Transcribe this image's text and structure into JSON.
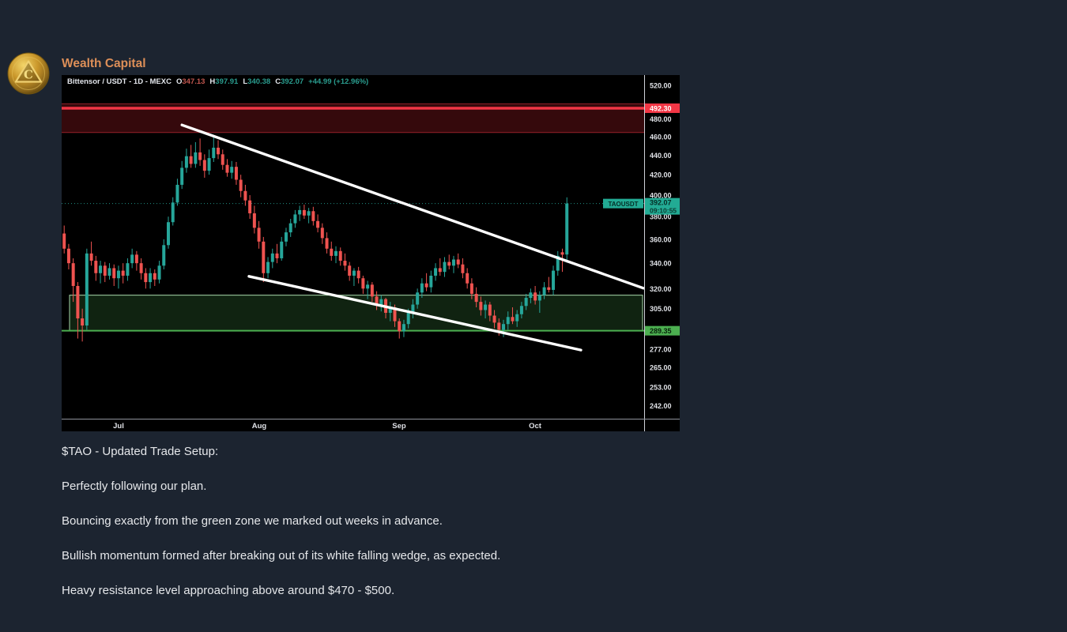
{
  "header": {
    "brand": "Wealth Capital",
    "brand_color": "#dd8f58",
    "logo_letter": "C"
  },
  "chart": {
    "title": "Bittensor / USDT - 1D - MEXC",
    "ohlc": {
      "o_label": "O",
      "o": "347.13",
      "h_label": "H",
      "h": "397.91",
      "l_label": "L",
      "l": "340.38",
      "c_label": "C",
      "c": "392.07",
      "change": "+44.99 (+12.96%)"
    },
    "symbol_tag": "TAOUSDT",
    "current_price": "392.07",
    "countdown": "09:10:55",
    "level_resistance": "492.30",
    "level_support": "289.35",
    "colors": {
      "up": "#26a69a",
      "down": "#ef5350",
      "open_value": "#c0564e",
      "value_teal": "#2a9d8f",
      "resistance": "#f23645",
      "support": "#4caf50",
      "last_label_bg": "#22ab94",
      "trendline": "#ffffff",
      "axis_text": "#e0e2e7",
      "chart_bg": "#000000"
    }
  },
  "chart_data": {
    "type": "candlestick",
    "title": "Bittensor / USDT - 1D - MEXC",
    "symbol": "TAOUSDT",
    "interval": "1D",
    "exchange": "MEXC",
    "scale": "log",
    "last_candle": {
      "open": 347.13,
      "high": 397.91,
      "low": 340.38,
      "close": 392.07,
      "change": 44.99,
      "change_pct": 12.96
    },
    "y_axis_ticks": [
      "520.00",
      "480.00",
      "460.00",
      "440.00",
      "420.00",
      "400.00",
      "380.00",
      "360.00",
      "340.00",
      "320.00",
      "305.00",
      "277.00",
      "265.00",
      "253.00",
      "242.00"
    ],
    "x_axis_labels": [
      "Jul",
      "Aug",
      "Sep",
      "Oct"
    ],
    "levels": {
      "resistance": 492.3,
      "support": 289.35,
      "last": 392.07
    },
    "zones": {
      "resistance": {
        "from": 464.5,
        "to": 497.5,
        "color": "red"
      },
      "support": {
        "from": 289.35,
        "to": 315,
        "color": "green"
      }
    },
    "trendlines": [
      {
        "name": "wedge-upper",
        "from": [
          26,
          473
        ],
        "to": [
          127.9,
          320.3
        ]
      },
      {
        "name": "wedge-lower",
        "from": [
          40.8,
          329.5
        ],
        "to": [
          114.1,
          276.3
        ]
      }
    ],
    "candles": [
      [
        365,
        372,
        348,
        352
      ],
      [
        352,
        356,
        335,
        340
      ],
      [
        340,
        344,
        310,
        322
      ],
      [
        322,
        325,
        284,
        298
      ],
      [
        298,
        305,
        282,
        293
      ],
      [
        293,
        352,
        290,
        348
      ],
      [
        348,
        358,
        338,
        342
      ],
      [
        342,
        346,
        326,
        332
      ],
      [
        332,
        342,
        324,
        338
      ],
      [
        338,
        341,
        325,
        330
      ],
      [
        330,
        340,
        327,
        336
      ],
      [
        336,
        339,
        322,
        328
      ],
      [
        328,
        338,
        320,
        334
      ],
      [
        334,
        340,
        324,
        330
      ],
      [
        330,
        344,
        326,
        340
      ],
      [
        340,
        352,
        336,
        347
      ],
      [
        347,
        350,
        334,
        340
      ],
      [
        340,
        344,
        327,
        332
      ],
      [
        332,
        336,
        320,
        325
      ],
      [
        325,
        336,
        320,
        332
      ],
      [
        332,
        335,
        322,
        327
      ],
      [
        327,
        342,
        324,
        338
      ],
      [
        338,
        360,
        335,
        355
      ],
      [
        355,
        380,
        352,
        375
      ],
      [
        375,
        398,
        372,
        393
      ],
      [
        393,
        416,
        390,
        410
      ],
      [
        410,
        434,
        406,
        427
      ],
      [
        427,
        447,
        422,
        439
      ],
      [
        439,
        451,
        427,
        431
      ],
      [
        431,
        454,
        427,
        443
      ],
      [
        443,
        458,
        429,
        435
      ],
      [
        435,
        441,
        417,
        424
      ],
      [
        424,
        446,
        420,
        437
      ],
      [
        437,
        462,
        433,
        448
      ],
      [
        448,
        456,
        436,
        441
      ],
      [
        441,
        446,
        425,
        430
      ],
      [
        430,
        436,
        418,
        422
      ],
      [
        422,
        434,
        416,
        428
      ],
      [
        428,
        433,
        410,
        415
      ],
      [
        415,
        420,
        398,
        404
      ],
      [
        404,
        410,
        390,
        395
      ],
      [
        395,
        400,
        378,
        383
      ],
      [
        383,
        390,
        365,
        370
      ],
      [
        370,
        376,
        352,
        358
      ],
      [
        358,
        362,
        325,
        332
      ],
      [
        332,
        345,
        328,
        341
      ],
      [
        341,
        352,
        336,
        348
      ],
      [
        348,
        356,
        340,
        344
      ],
      [
        344,
        362,
        342,
        358
      ],
      [
        358,
        370,
        354,
        366
      ],
      [
        366,
        378,
        362,
        374
      ],
      [
        374,
        386,
        370,
        382
      ],
      [
        382,
        390,
        376,
        386
      ],
      [
        386,
        391,
        378,
        381
      ],
      [
        381,
        388,
        374,
        385
      ],
      [
        385,
        389,
        372,
        376
      ],
      [
        376,
        382,
        366,
        370
      ],
      [
        370,
        374,
        356,
        361
      ],
      [
        361,
        366,
        348,
        352
      ],
      [
        352,
        358,
        342,
        346
      ],
      [
        346,
        354,
        340,
        350
      ],
      [
        350,
        353,
        338,
        342
      ],
      [
        342,
        348,
        334,
        338
      ],
      [
        338,
        341,
        326,
        330
      ],
      [
        330,
        336,
        322,
        334
      ],
      [
        334,
        337,
        324,
        328
      ],
      [
        328,
        330,
        316,
        320
      ],
      [
        320,
        326,
        312,
        323
      ],
      [
        323,
        325,
        310,
        314
      ],
      [
        314,
        318,
        304,
        308
      ],
      [
        308,
        315,
        303,
        312
      ],
      [
        312,
        313,
        298,
        302
      ],
      [
        302,
        310,
        296,
        306
      ],
      [
        306,
        308,
        292,
        296
      ],
      [
        296,
        298,
        284,
        289
      ],
      [
        289,
        297,
        285,
        294
      ],
      [
        294,
        305,
        291,
        302
      ],
      [
        302,
        312,
        298,
        308
      ],
      [
        308,
        320,
        305,
        317
      ],
      [
        317,
        328,
        313,
        324
      ],
      [
        324,
        332,
        318,
        321
      ],
      [
        321,
        334,
        317,
        330
      ],
      [
        330,
        340,
        326,
        336
      ],
      [
        336,
        344,
        330,
        333
      ],
      [
        333,
        345,
        329,
        341
      ],
      [
        341,
        347,
        335,
        338
      ],
      [
        338,
        346,
        332,
        343
      ],
      [
        343,
        348,
        336,
        339
      ],
      [
        339,
        344,
        328,
        332
      ],
      [
        332,
        336,
        320,
        324
      ],
      [
        324,
        328,
        312,
        316
      ],
      [
        316,
        321,
        306,
        310
      ],
      [
        310,
        314,
        300,
        304
      ],
      [
        304,
        311,
        298,
        308
      ],
      [
        308,
        310,
        296,
        300
      ],
      [
        300,
        304,
        291,
        295
      ],
      [
        295,
        298,
        286,
        290
      ],
      [
        290,
        297,
        285,
        294
      ],
      [
        294,
        303,
        290,
        299
      ],
      [
        299,
        306,
        294,
        296
      ],
      [
        296,
        304,
        292,
        301
      ],
      [
        301,
        310,
        298,
        307
      ],
      [
        307,
        316,
        304,
        313
      ],
      [
        313,
        320,
        309,
        317
      ],
      [
        317,
        322,
        308,
        311
      ],
      [
        311,
        318,
        302,
        315
      ],
      [
        315,
        325,
        312,
        321
      ],
      [
        321,
        329,
        317,
        319
      ],
      [
        319,
        338,
        315,
        334
      ],
      [
        334,
        350,
        330,
        346
      ],
      [
        349,
        352,
        333,
        347
      ],
      [
        347.13,
        397.91,
        340.38,
        392.07
      ]
    ]
  },
  "post": {
    "lines": [
      "$TAO - Updated Trade Setup:",
      "Perfectly following our plan.",
      "Bouncing exactly from the green zone we marked out weeks in advance.",
      "Bullish momentum formed after breaking out of its white falling wedge, as expected.",
      "Heavy resistance level approaching above around $470 - $500."
    ]
  }
}
